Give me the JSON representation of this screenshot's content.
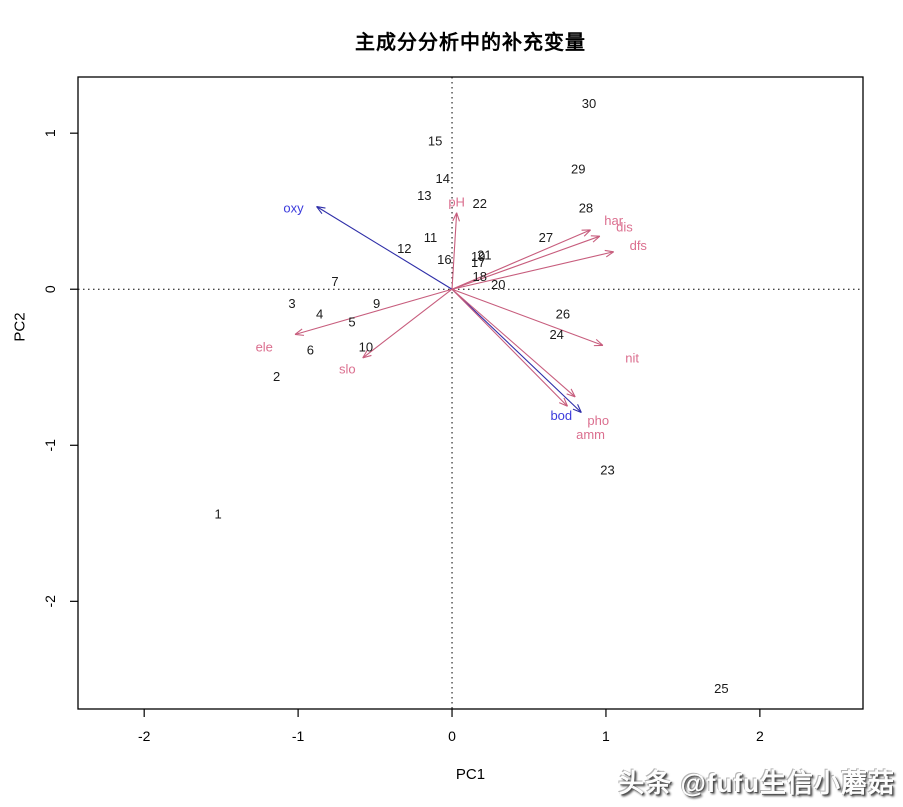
{
  "watermark": "头条 @fufu生信小蘑菇",
  "chart_data": {
    "type": "scatter",
    "subtype": "pca-biplot-with-supplementary-variable-arrows",
    "title": "主成分分析中的补充变量",
    "xlabel": "PC1",
    "ylabel": "PC2",
    "xlim": [
      -2.43,
      2.67
    ],
    "ylim": [
      -2.69,
      1.36
    ],
    "x_ticks": [
      -2,
      -1,
      0,
      1,
      2
    ],
    "y_ticks": [
      -2,
      -1,
      0,
      1
    ],
    "grid": "dotted zero reference lines at x=0 and y=0, full box border, ticks outside",
    "legend": "none",
    "colors": {
      "site_text": "#1a1a1a",
      "rose_line": "#c75d7d",
      "rose_text": "#db6f8f",
      "blue_line": "#2e2ea8",
      "blue_text": "#3b3bdc",
      "axis": "#000000"
    },
    "sites": [
      {
        "id": "1",
        "x": -1.52,
        "y": -1.44
      },
      {
        "id": "2",
        "x": -1.14,
        "y": -0.56
      },
      {
        "id": "3",
        "x": -1.04,
        "y": -0.09
      },
      {
        "id": "4",
        "x": -0.86,
        "y": -0.16
      },
      {
        "id": "5",
        "x": -0.65,
        "y": -0.21
      },
      {
        "id": "6",
        "x": -0.92,
        "y": -0.39
      },
      {
        "id": "7",
        "x": -0.76,
        "y": 0.05
      },
      {
        "id": "9",
        "x": -0.49,
        "y": -0.09
      },
      {
        "id": "10",
        "x": -0.56,
        "y": -0.37
      },
      {
        "id": "11",
        "x": -0.14,
        "y": 0.33
      },
      {
        "id": "12",
        "x": -0.31,
        "y": 0.26
      },
      {
        "id": "13",
        "x": -0.18,
        "y": 0.6
      },
      {
        "id": "14",
        "x": -0.06,
        "y": 0.71
      },
      {
        "id": "15",
        "x": -0.11,
        "y": 0.95
      },
      {
        "id": "16",
        "x": -0.05,
        "y": 0.19
      },
      {
        "id": "17",
        "x": 0.17,
        "y": 0.17
      },
      {
        "id": "18",
        "x": 0.18,
        "y": 0.08
      },
      {
        "id": "19",
        "x": 0.17,
        "y": 0.21
      },
      {
        "id": "20",
        "x": 0.3,
        "y": 0.03
      },
      {
        "id": "21",
        "x": 0.21,
        "y": 0.22
      },
      {
        "id": "22",
        "x": 0.18,
        "y": 0.55
      },
      {
        "id": "23",
        "x": 1.01,
        "y": -1.16
      },
      {
        "id": "24",
        "x": 0.68,
        "y": -0.29
      },
      {
        "id": "25",
        "x": 1.75,
        "y": -2.56
      },
      {
        "id": "26",
        "x": 0.72,
        "y": -0.16
      },
      {
        "id": "27",
        "x": 0.61,
        "y": 0.33
      },
      {
        "id": "28",
        "x": 0.87,
        "y": 0.52
      },
      {
        "id": "29",
        "x": 0.82,
        "y": 0.77
      },
      {
        "id": "30",
        "x": 0.89,
        "y": 1.19
      }
    ],
    "arrows": [
      {
        "name": "oxy",
        "x": -0.88,
        "y": 0.53,
        "label_x": -1.03,
        "label_y": 0.52,
        "group": "blue"
      },
      {
        "name": "bod",
        "x": 0.84,
        "y": -0.79,
        "label_x": 0.71,
        "label_y": -0.81,
        "group": "blue"
      },
      {
        "name": "pH",
        "x": 0.03,
        "y": 0.49,
        "label_x": 0.03,
        "label_y": 0.56,
        "group": "rose"
      },
      {
        "name": "har",
        "x": 0.9,
        "y": 0.38,
        "label_x": 1.05,
        "label_y": 0.44,
        "group": "rose"
      },
      {
        "name": "dis",
        "x": 0.96,
        "y": 0.34,
        "label_x": 1.12,
        "label_y": 0.4,
        "group": "rose"
      },
      {
        "name": "dfs",
        "x": 1.05,
        "y": 0.24,
        "label_x": 1.21,
        "label_y": 0.28,
        "group": "rose"
      },
      {
        "name": "nit",
        "x": 0.98,
        "y": -0.36,
        "label_x": 1.17,
        "label_y": -0.44,
        "group": "rose"
      },
      {
        "name": "pho",
        "x": 0.8,
        "y": -0.69,
        "label_x": 0.95,
        "label_y": -0.84,
        "group": "rose"
      },
      {
        "name": "amm",
        "x": 0.75,
        "y": -0.75,
        "label_x": 0.9,
        "label_y": -0.93,
        "group": "rose"
      },
      {
        "name": "ele",
        "x": -1.02,
        "y": -0.29,
        "label_x": -1.22,
        "label_y": -0.37,
        "group": "rose"
      },
      {
        "name": "slo",
        "x": -0.58,
        "y": -0.44,
        "label_x": -0.68,
        "label_y": -0.51,
        "group": "rose"
      }
    ]
  }
}
